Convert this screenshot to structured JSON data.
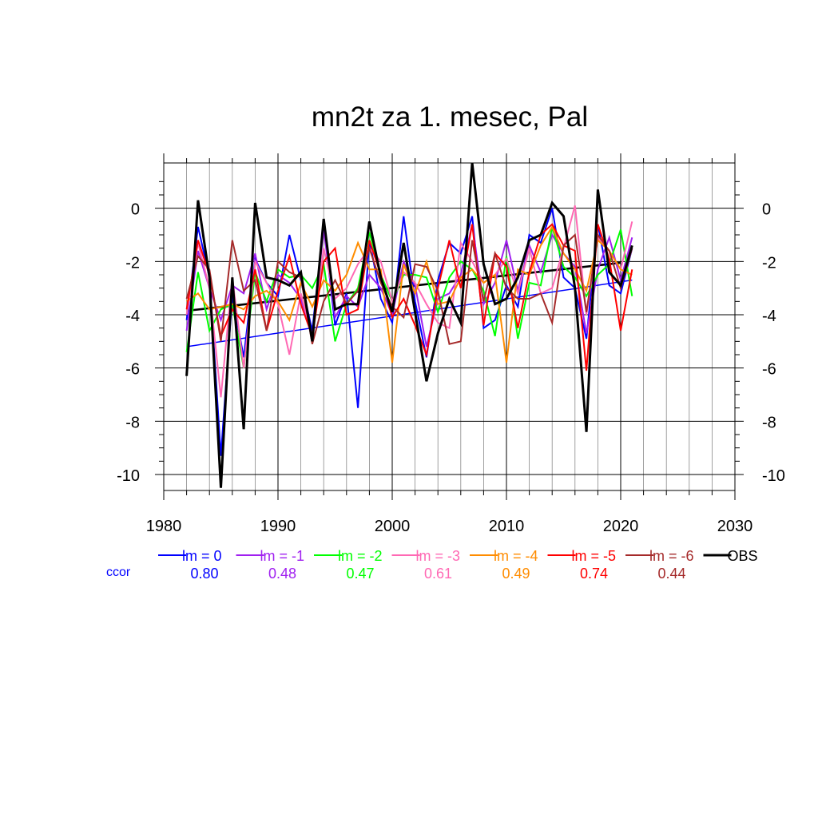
{
  "chart_data": {
    "type": "line",
    "title": "mn2t za 1. mesec, Pal",
    "xlabel": "",
    "ylabel": "",
    "xlim": [
      1980,
      2030
    ],
    "ylim": [
      -10.6,
      1.7
    ],
    "x_ticks": [
      1980,
      1990,
      2000,
      2010,
      2020,
      2030
    ],
    "y_ticks": [
      0,
      -2,
      -4,
      -6,
      -8,
      -10
    ],
    "grid": true,
    "legend_position": "bottom",
    "correlation_label": "ccor",
    "x": [
      1982,
      1983,
      1984,
      1985,
      1986,
      1987,
      1988,
      1989,
      1990,
      1991,
      1992,
      1993,
      1994,
      1995,
      1996,
      1997,
      1998,
      1999,
      2000,
      2001,
      2002,
      2003,
      2004,
      2005,
      2006,
      2007,
      2008,
      2009,
      2010,
      2011,
      2012,
      2013,
      2014,
      2015,
      2016,
      2017,
      2018,
      2019,
      2020,
      2021
    ],
    "series": [
      {
        "name": "lm = 0",
        "ccor": "0.80",
        "color": "#0000ff",
        "values": [
          -4.2,
          -0.7,
          -2.6,
          -9.3,
          -3.3,
          -5.6,
          -1.9,
          -2.8,
          -3.3,
          -1.0,
          -2.7,
          -4.6,
          -0.6,
          -4.4,
          -3.2,
          -7.5,
          -1.2,
          -3.4,
          -4.3,
          -0.3,
          -3.5,
          -5.6,
          -2.7,
          -1.3,
          -1.7,
          -0.3,
          -4.5,
          -4.2,
          -2.9,
          -3.7,
          -1.0,
          -1.3,
          0.0,
          -2.6,
          -3.0,
          -4.9,
          -0.6,
          -2.9,
          -3.2,
          -1.5
        ]
      },
      {
        "name": "lm = -1",
        "ccor": "0.48",
        "color": "#a020f0",
        "values": [
          -4.6,
          -1.6,
          -3.0,
          -4.2,
          -2.9,
          -3.2,
          -1.7,
          -3.8,
          -2.5,
          -2.8,
          -3.4,
          -4.8,
          -0.8,
          -4.1,
          -3.3,
          -3.7,
          -2.5,
          -3.0,
          -4.0,
          -2.0,
          -2.9,
          -5.2,
          -3.4,
          -3.2,
          -2.5,
          -0.6,
          -3.6,
          -2.8,
          -1.2,
          -3.1,
          -1.4,
          -2.4,
          -1.0,
          -1.7,
          -2.2,
          -4.7,
          -2.3,
          -1.1,
          -2.7,
          -1.1
        ]
      },
      {
        "name": "lm = -2",
        "ccor": "0.47",
        "color": "#00ff00",
        "values": [
          -5.4,
          -2.4,
          -4.6,
          -3.8,
          -3.6,
          -6.0,
          -2.4,
          -3.5,
          -2.3,
          -2.6,
          -2.5,
          -3.0,
          -2.1,
          -5.0,
          -3.6,
          -3.0,
          -0.9,
          -2.5,
          -3.5,
          -2.5,
          -2.5,
          -2.6,
          -3.9,
          -2.6,
          -2.0,
          -2.3,
          -3.1,
          -4.8,
          -1.8,
          -4.9,
          -2.8,
          -2.9,
          -0.7,
          -2.2,
          -2.6,
          -3.3,
          -2.5,
          -2.1,
          -0.8,
          -3.3
        ]
      },
      {
        "name": "lm = -3",
        "ccor": "0.61",
        "color": "#ff69b4",
        "values": [
          -4.0,
          -1.3,
          -3.0,
          -7.1,
          -2.6,
          -6.0,
          -2.0,
          -2.8,
          -3.6,
          -5.5,
          -3.2,
          -4.8,
          -1.5,
          -3.4,
          -3.0,
          -2.1,
          -1.5,
          -2.0,
          -3.5,
          -2.4,
          -2.8,
          -3.6,
          -4.3,
          -4.5,
          -1.3,
          -2.0,
          -2.8,
          -2.5,
          -1.9,
          -3.2,
          -1.5,
          -3.2,
          -3.0,
          -1.5,
          0.1,
          -4.0,
          -1.1,
          -1.6,
          -2.3,
          -0.5
        ]
      },
      {
        "name": "lm = -4",
        "ccor": "0.49",
        "color": "#ff8c00",
        "values": [
          -3.5,
          -3.2,
          -3.8,
          -3.7,
          -3.6,
          -3.8,
          -3.3,
          -3.1,
          -3.5,
          -4.2,
          -2.8,
          -3.7,
          -2.7,
          -3.1,
          -2.5,
          -1.3,
          -2.3,
          -2.3,
          -5.8,
          -2.1,
          -3.2,
          -2.0,
          -3.6,
          -3.5,
          -2.6,
          -2.3,
          -2.8,
          -2.5,
          -5.8,
          -2.3,
          -2.5,
          -1.4,
          -0.7,
          -1.7,
          -2.3,
          -3.1,
          -1.2,
          -1.6,
          -2.3,
          -2.5
        ]
      },
      {
        "name": "lm = -5",
        "ccor": "0.74",
        "color": "#ff0000",
        "values": [
          -3.8,
          -1.2,
          -2.5,
          -4.8,
          -3.8,
          -4.3,
          -2.3,
          -4.6,
          -3.1,
          -1.8,
          -3.6,
          -4.8,
          -2.0,
          -1.5,
          -4.0,
          -3.8,
          -1.2,
          -2.5,
          -4.1,
          -3.4,
          -4.4,
          -5.5,
          -3.0,
          -1.2,
          -3.0,
          -0.6,
          -4.4,
          -1.7,
          -2.2,
          -4.5,
          -2.4,
          -1.0,
          -0.6,
          -1.4,
          -1.6,
          -6.1,
          -0.6,
          -1.9,
          -4.6,
          -2.3
        ]
      },
      {
        "name": "lm = -6",
        "ccor": "0.44",
        "color": "#a52a2a",
        "values": [
          -3.4,
          -1.8,
          -2.3,
          -5.0,
          -1.2,
          -3.1,
          -2.7,
          -4.6,
          -2.0,
          -2.4,
          -2.6,
          -5.1,
          -3.5,
          -2.7,
          -3.6,
          -3.1,
          -1.5,
          -2.8,
          -3.7,
          -4.1,
          -2.1,
          -2.2,
          -3.1,
          -5.1,
          -5.0,
          -1.2,
          -3.5,
          -1.7,
          -3.0,
          -3.4,
          -3.4,
          -3.2,
          -4.3,
          -1.4,
          -1.0,
          -3.9,
          -1.0,
          -1.6,
          -3.0,
          -1.5
        ]
      },
      {
        "name": "OBS",
        "ccor": "",
        "color": "#000000",
        "values": [
          -6.3,
          0.3,
          -2.6,
          -10.5,
          -2.6,
          -8.3,
          0.2,
          -2.6,
          -2.7,
          -2.9,
          -2.4,
          -5.0,
          -0.4,
          -3.8,
          -3.6,
          -3.6,
          -0.5,
          -2.6,
          -3.9,
          -1.3,
          -3.9,
          -6.5,
          -4.7,
          -3.4,
          -4.3,
          1.7,
          -2.1,
          -3.6,
          -3.4,
          -2.6,
          -1.2,
          -1.0,
          0.2,
          -0.3,
          -3.0,
          -8.4,
          0.7,
          -2.4,
          -2.9,
          -1.4
        ]
      }
    ],
    "trends": [
      {
        "color": "#000000",
        "width": 2.6,
        "x": [
          1982,
          2020
        ],
        "y": [
          -3.85,
          -2.05
        ]
      },
      {
        "color": "#0000ff",
        "width": 1.5,
        "x": [
          1982,
          2021
        ],
        "y": [
          -5.2,
          -2.7
        ]
      }
    ]
  }
}
